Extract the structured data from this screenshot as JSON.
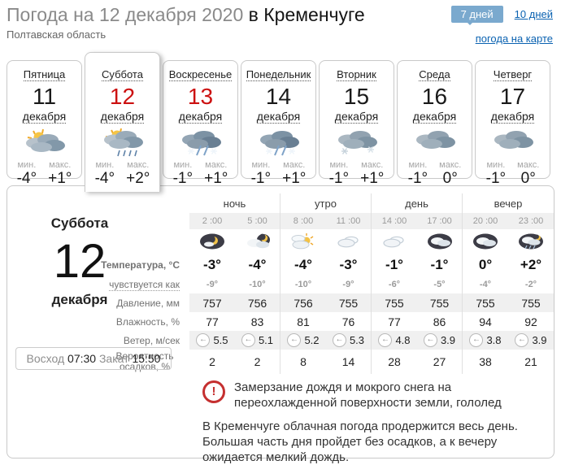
{
  "header": {
    "title_main": "Погода на 12 декабря 2020",
    "title_city": " в Кременчуге",
    "subtitle": "Полтавская область",
    "btn_7days": "7 дней",
    "link_10days": "10 дней",
    "link_map": "погода на карте"
  },
  "labels": {
    "min": "мин.",
    "max": "макс."
  },
  "days": [
    {
      "name": "Пятница",
      "date": "11",
      "month": "декабря",
      "icon": "sun-clouds",
      "min": "-4°",
      "max": "+1°",
      "selected": false,
      "holiday": false
    },
    {
      "name": "Суббота",
      "date": "12",
      "month": "декабря",
      "icon": "sun-clouds-rain",
      "min": "-4°",
      "max": "+2°",
      "selected": true,
      "holiday": true
    },
    {
      "name": "Воскресенье",
      "date": "13",
      "month": "декабря",
      "icon": "snow-rain-clouds",
      "min": "-1°",
      "max": "+1°",
      "selected": false,
      "holiday": true
    },
    {
      "name": "Понедельник",
      "date": "14",
      "month": "декабря",
      "icon": "snow-rain-clouds",
      "min": "-1°",
      "max": "+1°",
      "selected": false,
      "holiday": false
    },
    {
      "name": "Вторник",
      "date": "15",
      "month": "декабря",
      "icon": "clouds-snow",
      "min": "-1°",
      "max": "+1°",
      "selected": false,
      "holiday": false
    },
    {
      "name": "Среда",
      "date": "16",
      "month": "декабря",
      "icon": "clouds",
      "min": "-1°",
      "max": "0°",
      "selected": false,
      "holiday": false
    },
    {
      "name": "Четверг",
      "date": "17",
      "month": "декабря",
      "icon": "clouds",
      "min": "-1°",
      "max": "0°",
      "selected": false,
      "holiday": false
    }
  ],
  "selected_day": {
    "name": "Суббота",
    "date": "12",
    "month": "декабря",
    "sunrise_label": "Восход",
    "sunrise_time": "07:30",
    "sunset_label": "Закат",
    "sunset_time": "15:50"
  },
  "forecast": {
    "periods": [
      {
        "label": "ночь",
        "times": [
          "2 :00",
          "5 :00"
        ]
      },
      {
        "label": "утро",
        "times": [
          "8 :00",
          "11 :00"
        ]
      },
      {
        "label": "день",
        "times": [
          "14 :00",
          "17 :00"
        ]
      },
      {
        "label": "вечер",
        "times": [
          "20 :00",
          "23 :00"
        ]
      }
    ],
    "hour_icons": [
      "night-moon",
      "night-cloud-moon",
      "morning-sun-clouds",
      "cloud-light",
      "cloud-light",
      "night-cloud",
      "night-cloud",
      "night-rain"
    ],
    "wind_arrow": "←",
    "rows": [
      {
        "id": "temperature",
        "label": "Температура, °C",
        "kind": "temp",
        "shaded": false,
        "values": [
          "-3°",
          "-4°",
          "-4°",
          "-3°",
          "-1°",
          "-1°",
          "0°",
          "+2°"
        ]
      },
      {
        "id": "feels-like",
        "label": "чувствуется как",
        "kind": "feels",
        "shaded": false,
        "values": [
          "-9°",
          "-10°",
          "-10°",
          "-9°",
          "-6°",
          "-5°",
          "-4°",
          "-2°"
        ]
      },
      {
        "id": "pressure",
        "label": "Давление, мм",
        "kind": "num",
        "shaded": true,
        "values": [
          "757",
          "756",
          "756",
          "755",
          "755",
          "755",
          "755",
          "755"
        ]
      },
      {
        "id": "humidity",
        "label": "Влажность, %",
        "kind": "num",
        "shaded": false,
        "values": [
          "77",
          "83",
          "81",
          "76",
          "77",
          "86",
          "94",
          "92"
        ]
      },
      {
        "id": "wind",
        "label": "Ветер, м/сек",
        "kind": "wind",
        "shaded": true,
        "values": [
          "5.5",
          "5.1",
          "5.2",
          "5.3",
          "4.8",
          "3.9",
          "3.8",
          "3.9"
        ]
      },
      {
        "id": "precipitation",
        "label": "Вероятность осадков, %",
        "kind": "num",
        "shaded": false,
        "values": [
          "2",
          "2",
          "8",
          "14",
          "28",
          "27",
          "38",
          "21"
        ]
      }
    ]
  },
  "alerts": {
    "warning_text": "Замерзание дождя и мокрого снега на переохлажденной поверхности земли, гололед",
    "summary_text": "В Кременчуге облачная погода продержится весь день. Большая часть дня пройдет без осадков, а к вечеру ожидается мелкий дождь."
  },
  "colors": {
    "accent_blue": "#7aa9ce",
    "link_blue": "#0a62b1",
    "holiday_red": "#cc1111",
    "warning_red": "#c53030"
  }
}
